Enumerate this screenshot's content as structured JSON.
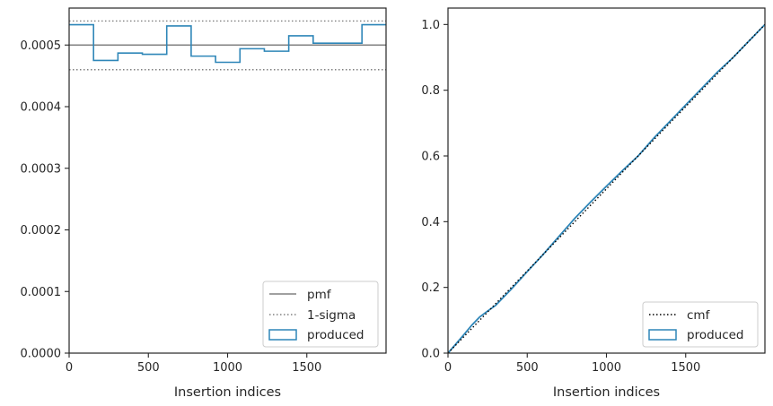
{
  "chart_data": [
    {
      "type": "histogram-step",
      "xlabel": "Insertion indices",
      "ylabel": "",
      "xlim": [
        0,
        2000
      ],
      "ylim": [
        0,
        0.00056
      ],
      "xticks": [
        0,
        500,
        1000,
        1500
      ],
      "yticks": [
        "0.0000",
        "0.0001",
        "0.0002",
        "0.0003",
        "0.0004",
        "0.0005"
      ],
      "ytick_values": [
        0,
        0.0001,
        0.0002,
        0.0003,
        0.0004,
        0.0005
      ],
      "reference_lines": [
        {
          "name": "pmf",
          "y": 0.0005,
          "style": "solid",
          "color": "#808080"
        },
        {
          "name": "1-sigma",
          "y": 0.000539,
          "style": "dotted",
          "color": "#808080"
        },
        {
          "name": "1-sigma",
          "y": 0.00046,
          "style": "dotted",
          "color": "#808080"
        }
      ],
      "series": [
        {
          "name": "produced",
          "color": "#2e86b8",
          "bin_edges": [
            0,
            154,
            308,
            462,
            616,
            770,
            924,
            1078,
            1232,
            1386,
            1540,
            1694,
            1848,
            2000
          ],
          "values": [
            0.000533,
            0.000475,
            0.000487,
            0.000485,
            0.000531,
            0.000482,
            0.000472,
            0.000494,
            0.00049,
            0.000515,
            0.000503,
            0.000503,
            0.000533
          ]
        }
      ],
      "legend": {
        "placement": "lower right",
        "entries": [
          {
            "label": "pmf",
            "kind": "solid-line",
            "color": "#808080"
          },
          {
            "label": "1-sigma",
            "kind": "dotted-line",
            "color": "#808080"
          },
          {
            "label": "produced",
            "kind": "box",
            "color": "#2e86b8"
          }
        ]
      }
    },
    {
      "type": "line",
      "xlabel": "Insertion indices",
      "ylabel": "",
      "xlim": [
        0,
        2000
      ],
      "ylim": [
        0,
        1.05
      ],
      "xticks": [
        0,
        500,
        1000,
        1500
      ],
      "yticks": [
        "0.0",
        "0.2",
        "0.4",
        "0.6",
        "0.8",
        "1.0"
      ],
      "ytick_values": [
        0,
        0.2,
        0.4,
        0.6,
        0.8,
        1.0
      ],
      "series": [
        {
          "name": "cmf",
          "style": "dotted",
          "color": "#000000",
          "x": [
            0,
            2000
          ],
          "y": [
            0,
            1.0
          ]
        },
        {
          "name": "produced",
          "style": "solid",
          "color": "#2e86b8",
          "x": [
            0,
            50,
            100,
            150,
            200,
            250,
            300,
            400,
            500,
            600,
            700,
            800,
            900,
            1000,
            1100,
            1200,
            1300,
            1400,
            1500,
            1600,
            1700,
            1800,
            1900,
            2000
          ],
          "y": [
            0,
            0.028,
            0.056,
            0.085,
            0.11,
            0.128,
            0.145,
            0.195,
            0.248,
            0.3,
            0.355,
            0.41,
            0.46,
            0.508,
            0.555,
            0.6,
            0.655,
            0.705,
            0.755,
            0.805,
            0.855,
            0.9,
            0.95,
            1.0
          ]
        }
      ],
      "legend": {
        "placement": "lower right",
        "entries": [
          {
            "label": "cmf",
            "kind": "dotted-line",
            "color": "#000000"
          },
          {
            "label": "produced",
            "kind": "box",
            "color": "#2e86b8"
          }
        ]
      }
    }
  ]
}
